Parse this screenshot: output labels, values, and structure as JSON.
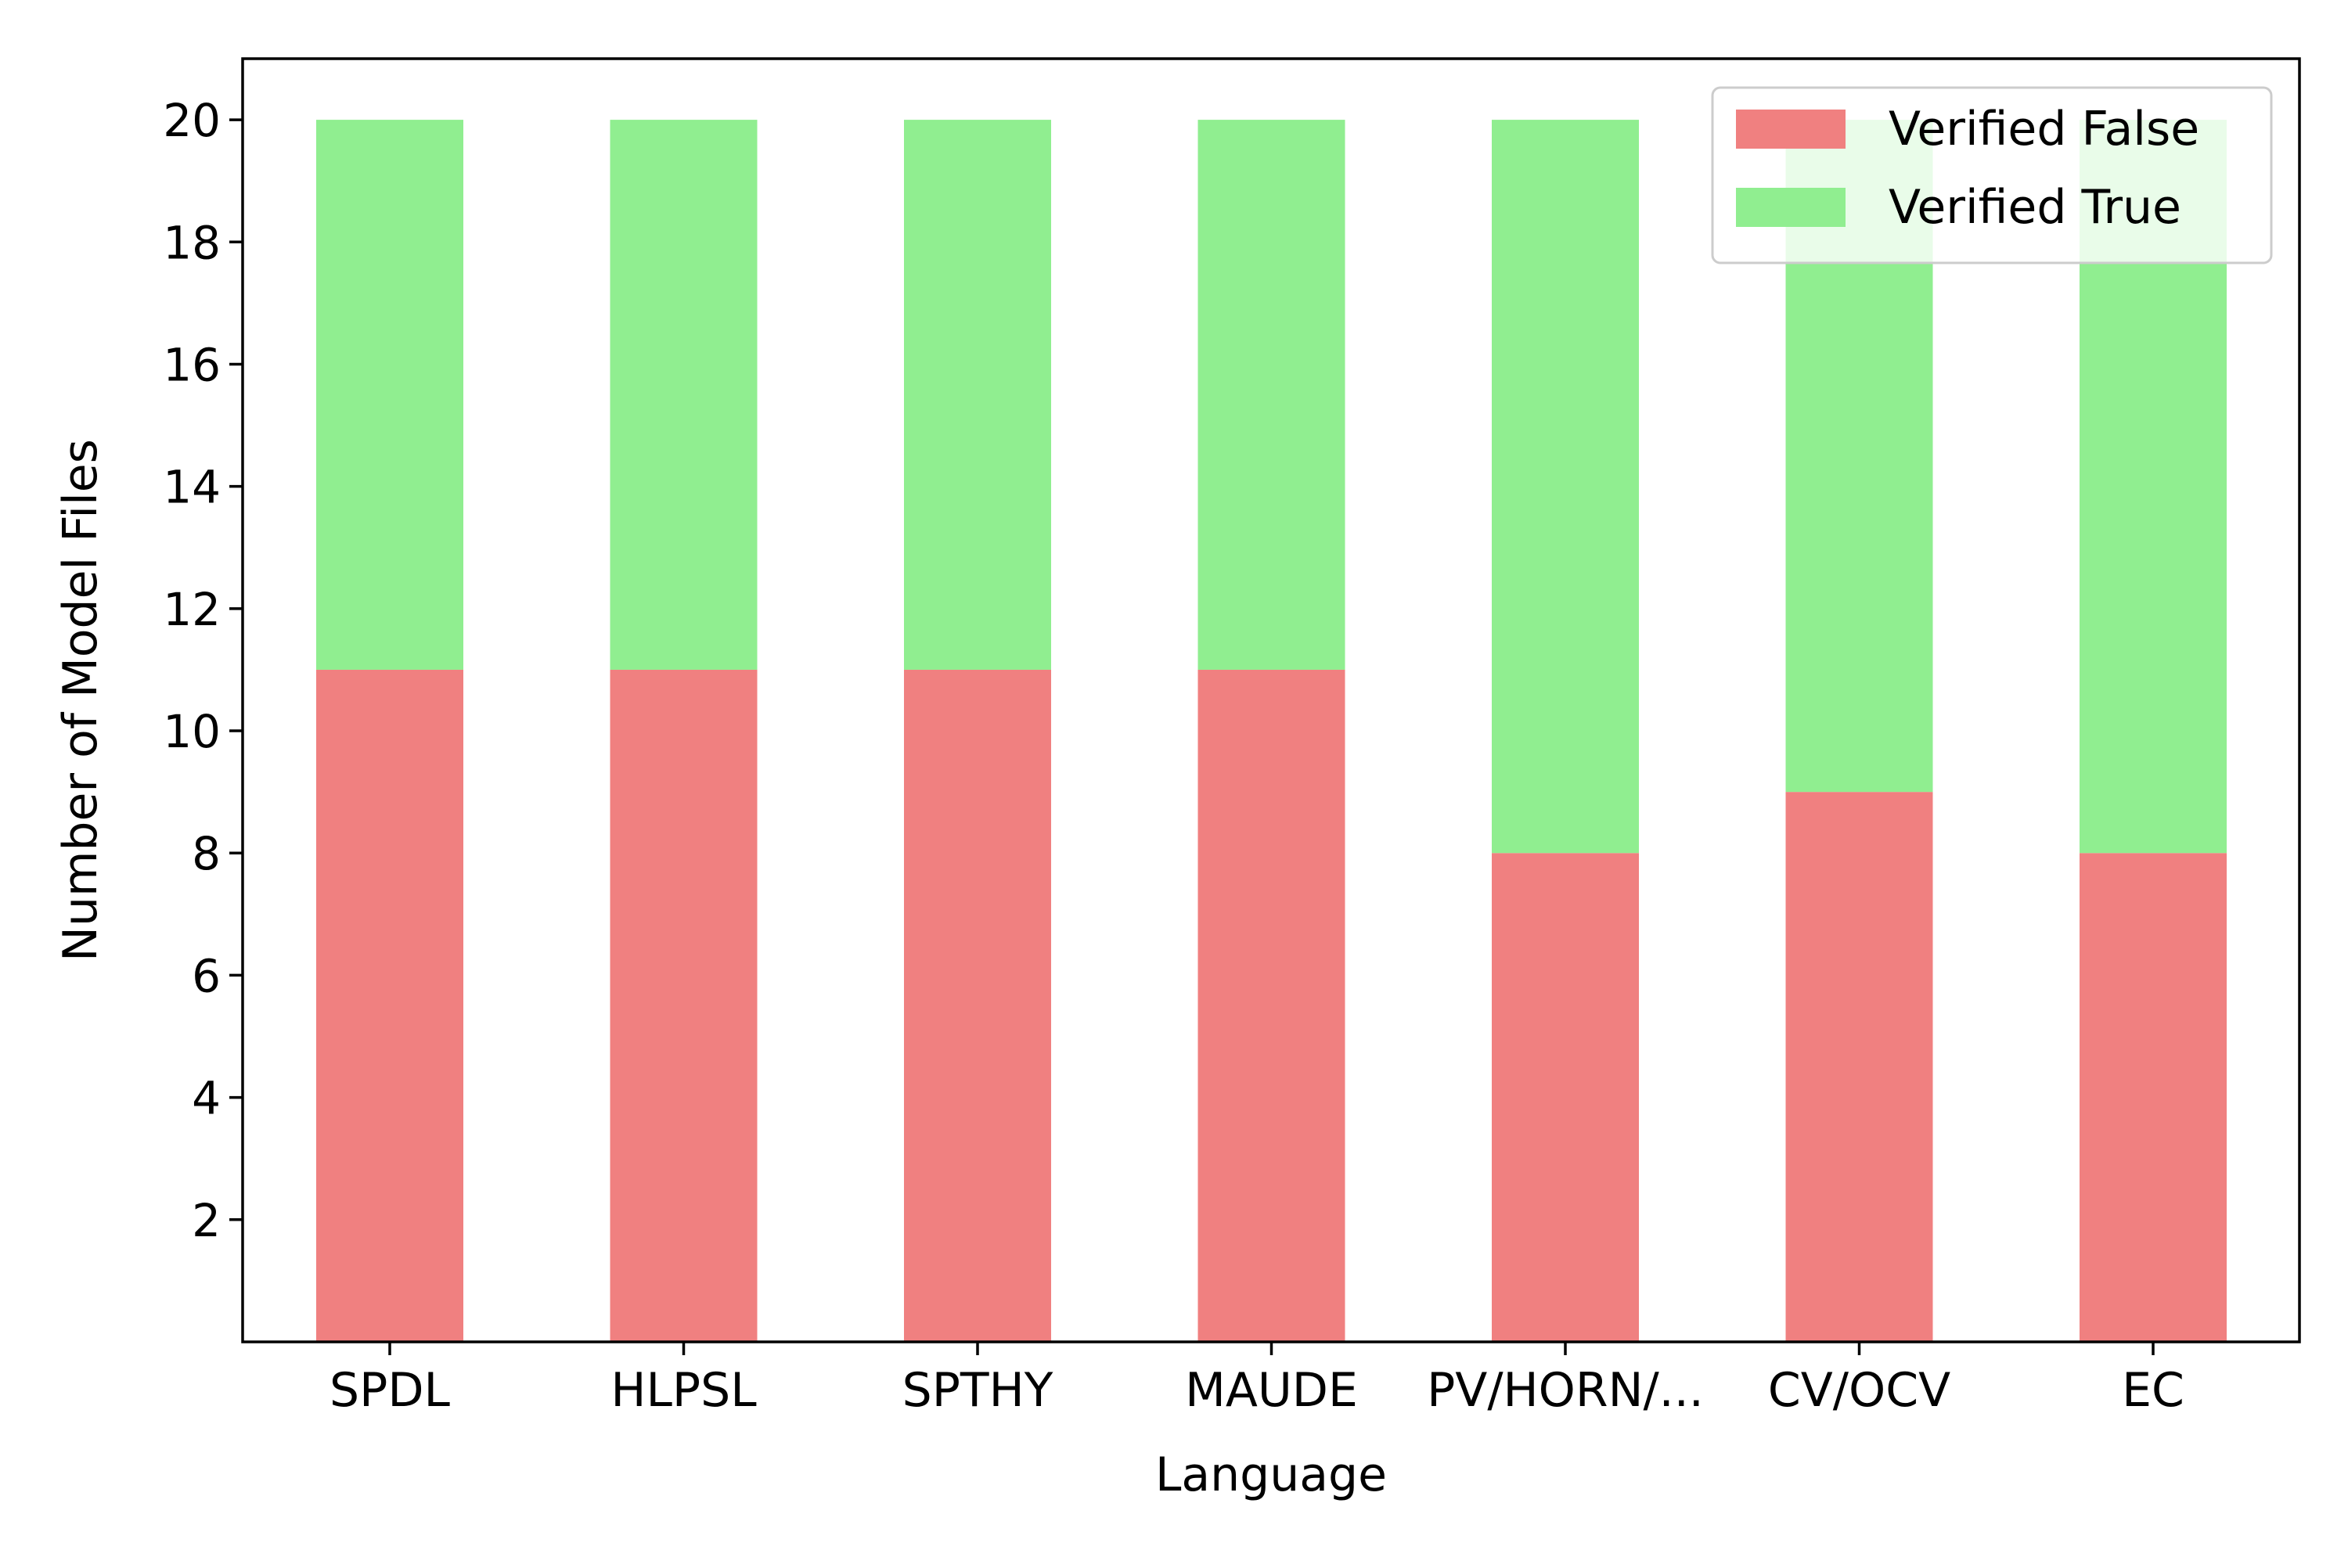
{
  "chart_data": {
    "type": "bar",
    "stacked": true,
    "categories": [
      "SPDL",
      "HLPSL",
      "SPTHY",
      "MAUDE",
      "PV/HORN/...",
      "CV/OCV",
      "EC"
    ],
    "series": [
      {
        "name": "Verified False",
        "color": "#f08080",
        "values": [
          11,
          11,
          11,
          11,
          8,
          9,
          8
        ]
      },
      {
        "name": "Verified True",
        "color": "#90ee90",
        "values": [
          9,
          9,
          9,
          9,
          12,
          11,
          12
        ]
      }
    ],
    "xlabel": "Language",
    "ylabel": "Number of Model Files",
    "ylim": [
      0,
      21
    ],
    "yticks": [
      2,
      4,
      6,
      8,
      10,
      12,
      14,
      16,
      18,
      20
    ],
    "grid": false,
    "legend_position": "top-right"
  }
}
